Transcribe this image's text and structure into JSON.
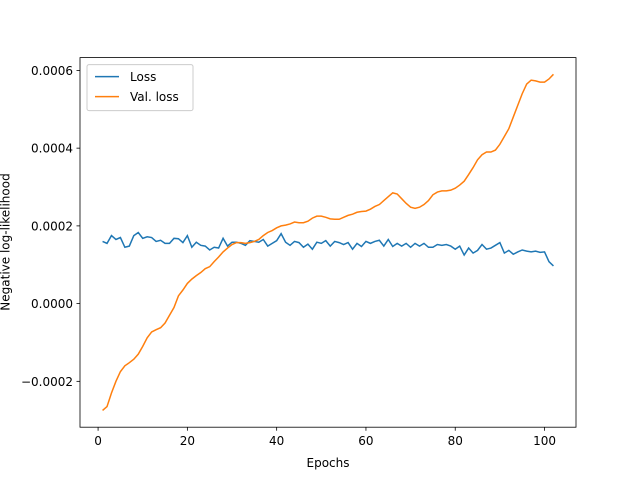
{
  "chart_data": {
    "type": "line",
    "xlabel": "Epochs",
    "ylabel": "Negative log-likelihood",
    "x": [
      1,
      2,
      3,
      4,
      5,
      6,
      7,
      8,
      9,
      10,
      11,
      12,
      13,
      14,
      15,
      16,
      17,
      18,
      19,
      20,
      21,
      22,
      23,
      24,
      25,
      26,
      27,
      28,
      29,
      30,
      31,
      32,
      33,
      34,
      35,
      36,
      37,
      38,
      39,
      40,
      41,
      42,
      43,
      44,
      45,
      46,
      47,
      48,
      49,
      50,
      51,
      52,
      53,
      54,
      55,
      56,
      57,
      58,
      59,
      60,
      61,
      62,
      63,
      64,
      65,
      66,
      67,
      68,
      69,
      70,
      71,
      72,
      73,
      74,
      75,
      76,
      77,
      78,
      79,
      80,
      81,
      82,
      83,
      84,
      85,
      86,
      87,
      88,
      89,
      90,
      91,
      92,
      93,
      94,
      95,
      96,
      97,
      98,
      99,
      100,
      101,
      102
    ],
    "series": [
      {
        "name": "Loss",
        "color": "#1f77b4",
        "values": [
          0.00016,
          0.000155,
          0.000175,
          0.000165,
          0.00017,
          0.000145,
          0.000148,
          0.000175,
          0.000183,
          0.000168,
          0.000172,
          0.00017,
          0.00016,
          0.000163,
          0.000155,
          0.000155,
          0.000168,
          0.000167,
          0.000157,
          0.000175,
          0.000145,
          0.000158,
          0.00015,
          0.000148,
          0.000138,
          0.000145,
          0.000143,
          0.000168,
          0.000148,
          0.000158,
          0.000158,
          0.000155,
          0.00015,
          0.000162,
          0.00016,
          0.000158,
          0.000165,
          0.000148,
          0.000155,
          0.000162,
          0.00018,
          0.000158,
          0.00015,
          0.00016,
          0.000157,
          0.000145,
          0.000153,
          0.00014,
          0.000158,
          0.000155,
          0.000162,
          0.000148,
          0.00016,
          0.000157,
          0.000152,
          0.000157,
          0.00014,
          0.000155,
          0.000147,
          0.00016,
          0.000155,
          0.00016,
          0.000163,
          0.000148,
          0.000165,
          0.000147,
          0.000155,
          0.000148,
          0.000155,
          0.000145,
          0.000155,
          0.000148,
          0.000155,
          0.000145,
          0.000145,
          0.000152,
          0.00015,
          0.000152,
          0.000148,
          0.00014,
          0.000148,
          0.000125,
          0.000143,
          0.00013,
          0.000137,
          0.000152,
          0.00014,
          0.000143,
          0.00015,
          0.000157,
          0.00013,
          0.000137,
          0.000127,
          0.000133,
          0.000138,
          0.000135,
          0.000133,
          0.000135,
          0.000132,
          0.000133,
          0.000108,
          9.7e-05
        ]
      },
      {
        "name": "Val. loss",
        "color": "#ff7f0e",
        "values": [
          -0.000275,
          -0.000265,
          -0.00023,
          -0.0002,
          -0.000175,
          -0.00016,
          -0.000152,
          -0.000143,
          -0.00013,
          -0.00011,
          -8.8e-05,
          -7.3e-05,
          -6.7e-05,
          -6.2e-05,
          -5e-05,
          -3e-05,
          -1e-05,
          2e-05,
          3.5e-05,
          5.2e-05,
          6.3e-05,
          7.2e-05,
          8e-05,
          9e-05,
          9.5e-05,
          0.000108,
          0.00012,
          0.000133,
          0.000143,
          0.000152,
          0.000157,
          0.000157,
          0.000155,
          0.000157,
          0.00016,
          0.000165,
          0.000175,
          0.000183,
          0.000188,
          0.000195,
          0.0002,
          0.000202,
          0.000205,
          0.00021,
          0.000208,
          0.000208,
          0.000212,
          0.00022,
          0.000225,
          0.000225,
          0.000222,
          0.000218,
          0.000217,
          0.000217,
          0.000222,
          0.000227,
          0.00023,
          0.000235,
          0.000237,
          0.000238,
          0.000243,
          0.00025,
          0.000255,
          0.000265,
          0.000275,
          0.000285,
          0.000282,
          0.00027,
          0.000258,
          0.000248,
          0.000245,
          0.000248,
          0.000255,
          0.000265,
          0.00028,
          0.000287,
          0.00029,
          0.00029,
          0.000292,
          0.000297,
          0.000305,
          0.000315,
          0.000332,
          0.00035,
          0.00037,
          0.000383,
          0.00039,
          0.00039,
          0.000395,
          0.00041,
          0.00043,
          0.00045,
          0.00048,
          0.00051,
          0.00054,
          0.000565,
          0.000575,
          0.000573,
          0.00057,
          0.00057,
          0.000578,
          0.00059
        ]
      }
    ],
    "xlim": [
      -4.05,
      107.05
    ],
    "xticks": [
      0,
      20,
      40,
      60,
      80,
      100
    ],
    "ylim": [
      -0.000318,
      0.000633
    ],
    "yticks": [
      {
        "value": -0.0002,
        "label": "−0.0002"
      },
      {
        "value": 0,
        "label": "0.0000"
      },
      {
        "value": 0.0002,
        "label": "0.0002"
      },
      {
        "value": 0.0004,
        "label": "0.0004"
      },
      {
        "value": 0.0006,
        "label": "0.0006"
      }
    ],
    "legend": "upper left",
    "grid": false
  }
}
